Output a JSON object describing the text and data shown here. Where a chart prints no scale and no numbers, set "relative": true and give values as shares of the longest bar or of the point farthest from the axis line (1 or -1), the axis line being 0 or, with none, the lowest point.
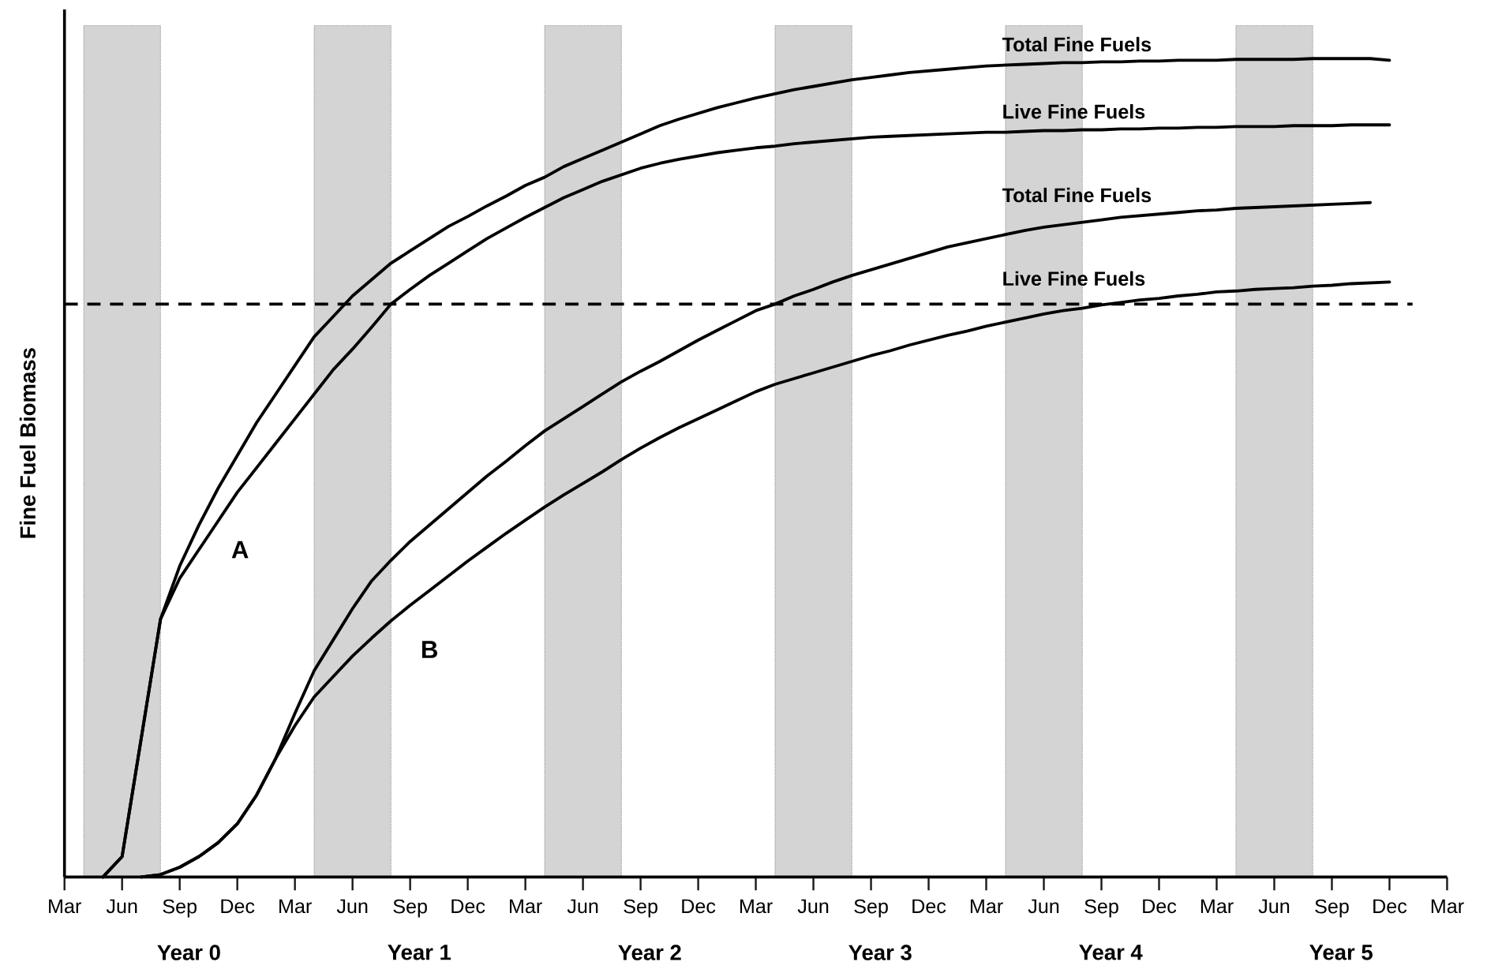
{
  "chart_data": {
    "type": "line",
    "relative": true,
    "ylabel": "Fine Fuel Biomass",
    "line_style": "solid",
    "categories": [
      "Mar",
      null,
      null,
      "Jun",
      null,
      null,
      "Sep",
      null,
      null,
      "Dec",
      null,
      null,
      "Mar",
      null,
      null,
      "Jun",
      null,
      null,
      "Sep",
      null,
      null,
      "Dec",
      null,
      null,
      "Mar",
      null,
      null,
      "Jun",
      null,
      null,
      "Sep",
      null,
      null,
      "Dec",
      null,
      null,
      "Mar",
      null,
      null,
      "Jun",
      null,
      null,
      "Sep",
      null,
      null,
      "Dec",
      null,
      null,
      "Mar",
      null,
      null,
      "Jun",
      null,
      null,
      "Sep",
      null,
      null,
      "Dec",
      null,
      null,
      "Mar",
      null,
      null,
      "Jun",
      null,
      null,
      "Sep",
      null,
      null,
      "Dec",
      null,
      null,
      "Mar"
    ],
    "series": [
      {
        "name": "Total Fine Fuels",
        "color": "#000000",
        "values": [
          null,
          null,
          0,
          0.025,
          0.17,
          0.315,
          0.38,
          0.43,
          0.475,
          0.515,
          0.555,
          0.59,
          0.625,
          0.66,
          0.685,
          0.71,
          0.73,
          0.75,
          0.765,
          0.78,
          0.795,
          0.807,
          0.82,
          0.832,
          0.845,
          0.855,
          0.868,
          0.878,
          0.888,
          0.898,
          0.908,
          0.918,
          0.926,
          0.933,
          0.94,
          0.946,
          0.952,
          0.957,
          0.962,
          0.966,
          0.97,
          0.974,
          0.977,
          0.98,
          0.983,
          0.985,
          0.987,
          0.989,
          0.991,
          0.992,
          0.993,
          0.994,
          0.995,
          0.995,
          0.996,
          0.996,
          0.997,
          0.997,
          0.998,
          0.998,
          0.998,
          0.999,
          0.999,
          0.999,
          0.999,
          1,
          1,
          1,
          1,
          0.998,
          null,
          null,
          null
        ]
      },
      {
        "name": "Live Fine Fuels",
        "color": "#000000",
        "values": [
          null,
          null,
          0,
          0.025,
          0.17,
          0.315,
          0.365,
          0.4,
          0.435,
          0.47,
          0.5,
          0.53,
          0.56,
          0.59,
          0.62,
          0.645,
          0.672,
          0.7,
          0.718,
          0.735,
          0.75,
          0.765,
          0.78,
          0.793,
          0.806,
          0.818,
          0.83,
          0.84,
          0.85,
          0.858,
          0.866,
          0.872,
          0.877,
          0.881,
          0.885,
          0.888,
          0.891,
          0.893,
          0.896,
          0.898,
          0.9,
          0.902,
          0.904,
          0.905,
          0.906,
          0.907,
          0.908,
          0.909,
          0.91,
          0.91,
          0.911,
          0.912,
          0.912,
          0.913,
          0.913,
          0.914,
          0.914,
          0.915,
          0.915,
          0.916,
          0.916,
          0.917,
          0.917,
          0.917,
          0.918,
          0.918,
          0.918,
          0.919,
          0.919,
          0.919,
          null,
          null,
          null
        ]
      },
      {
        "name": "Total Fine Fuels",
        "color": "#000000",
        "values": [
          null,
          null,
          null,
          null,
          0,
          0.003,
          0.012,
          0.025,
          0.042,
          0.065,
          0.1,
          0.145,
          0.2,
          0.252,
          0.29,
          0.328,
          0.362,
          0.387,
          0.41,
          0.43,
          0.45,
          0.47,
          0.49,
          0.508,
          0.527,
          0.545,
          0.56,
          0.575,
          0.59,
          0.605,
          0.618,
          0.63,
          0.643,
          0.656,
          0.668,
          0.68,
          0.692,
          0.7,
          0.71,
          0.718,
          0.727,
          0.735,
          0.742,
          0.749,
          0.756,
          0.763,
          0.77,
          0.775,
          0.78,
          0.785,
          0.79,
          0.794,
          0.797,
          0.8,
          0.803,
          0.806,
          0.808,
          0.81,
          0.812,
          0.814,
          0.815,
          0.817,
          0.818,
          0.819,
          0.82,
          0.821,
          0.822,
          0.823,
          0.824,
          null,
          null,
          null,
          null
        ]
      },
      {
        "name": "Live Fine Fuels",
        "color": "#000000",
        "values": [
          null,
          null,
          null,
          null,
          0,
          0.003,
          0.012,
          0.025,
          0.042,
          0.065,
          0.1,
          0.145,
          0.185,
          0.22,
          0.245,
          0.27,
          0.292,
          0.313,
          0.332,
          0.35,
          0.368,
          0.386,
          0.403,
          0.42,
          0.436,
          0.452,
          0.467,
          0.481,
          0.495,
          0.51,
          0.524,
          0.537,
          0.549,
          0.56,
          0.571,
          0.582,
          0.593,
          0.602,
          0.609,
          0.616,
          0.623,
          0.63,
          0.637,
          0.643,
          0.65,
          0.656,
          0.662,
          0.667,
          0.673,
          0.678,
          0.683,
          0.688,
          0.692,
          0.695,
          0.699,
          0.702,
          0.705,
          0.707,
          0.71,
          0.712,
          0.715,
          0.716,
          0.718,
          0.719,
          0.72,
          0.722,
          0.723,
          0.725,
          0.726,
          0.727,
          null,
          null,
          null
        ]
      }
    ],
    "ref_lines": [
      {
        "axis": "y",
        "value": 0.7,
        "line_style": "dashed",
        "color": "#000000"
      }
    ],
    "annotations": [
      "A",
      "B",
      "Year 0",
      "Year 1",
      "Year 2",
      "Year 3",
      "Year 4",
      "Year 5"
    ]
  }
}
